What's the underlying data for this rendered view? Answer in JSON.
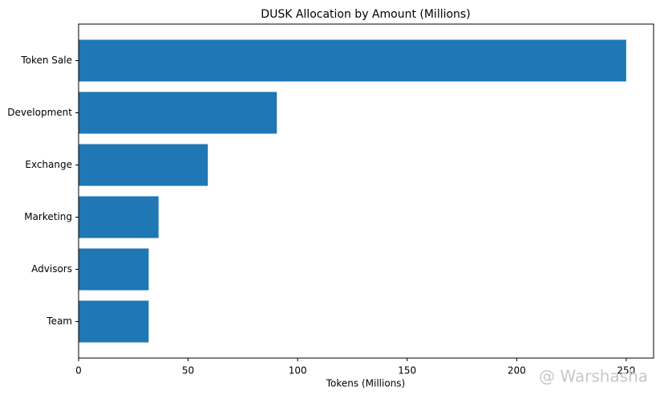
{
  "chart_data": {
    "type": "barh",
    "title": "DUSK Allocation by Amount (Millions)",
    "x_label": "Tokens (Millions)",
    "categories": [
      "Token Sale",
      "Development",
      "Exchange",
      "Marketing",
      "Advisors",
      "Team"
    ],
    "values": [
      250,
      90.5,
      59,
      36.5,
      32,
      32
    ],
    "color": "#1f77b4",
    "xlim": [
      0,
      262.5
    ],
    "xticks": [
      0,
      50,
      100,
      150,
      200,
      250
    ],
    "grid": false
  },
  "watermark": "@ Warshasha"
}
